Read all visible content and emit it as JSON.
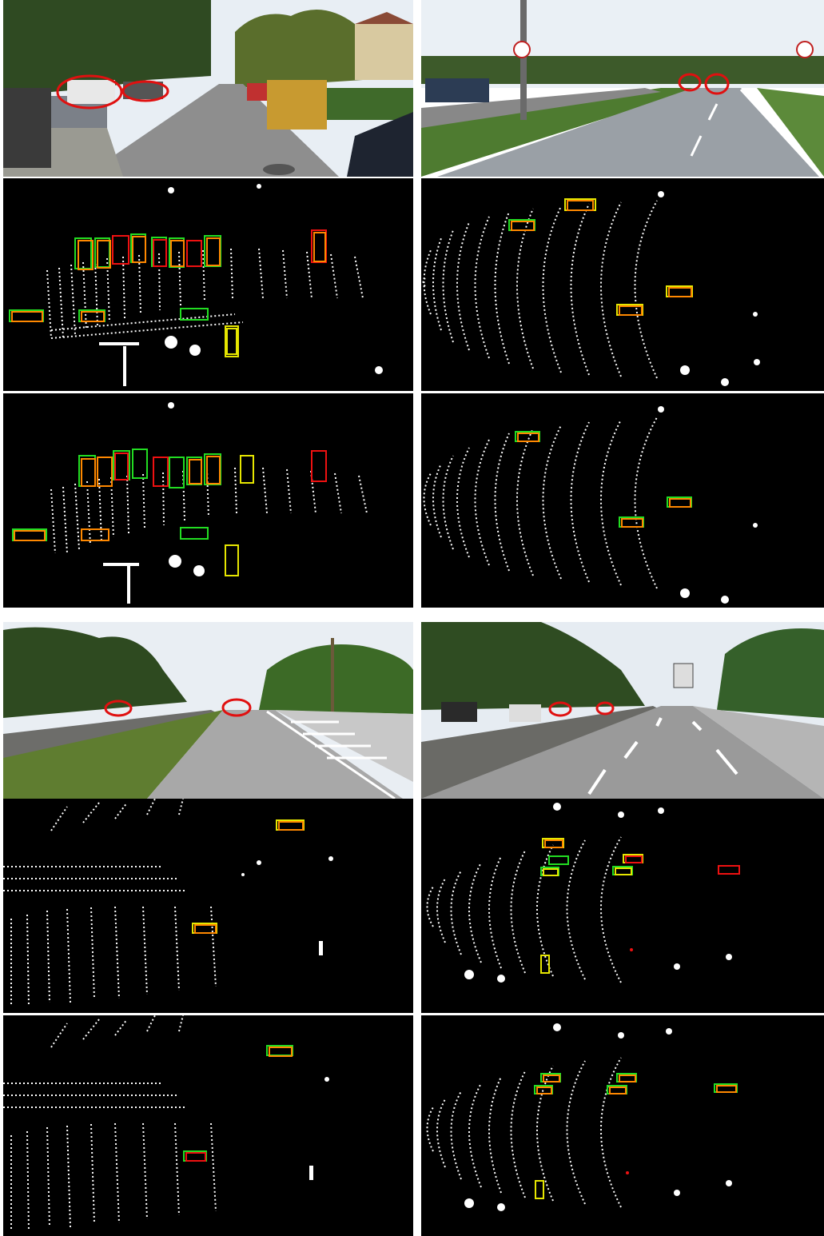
{
  "figure": {
    "box_colors": {
      "green": "#22dd22",
      "red": "#ee1111",
      "yellow": "#e6e600",
      "orange": "#ff8800",
      "circle": "#e01010"
    },
    "groups": [
      {
        "id": "top-left",
        "views": [
          "camera",
          "bev",
          "bev"
        ]
      },
      {
        "id": "top-right",
        "views": [
          "camera",
          "bev",
          "bev"
        ]
      },
      {
        "id": "bottom-left",
        "views": [
          "camera",
          "bev",
          "bev"
        ]
      },
      {
        "id": "bottom-right",
        "views": [
          "camera",
          "bev",
          "bev"
        ]
      }
    ]
  }
}
